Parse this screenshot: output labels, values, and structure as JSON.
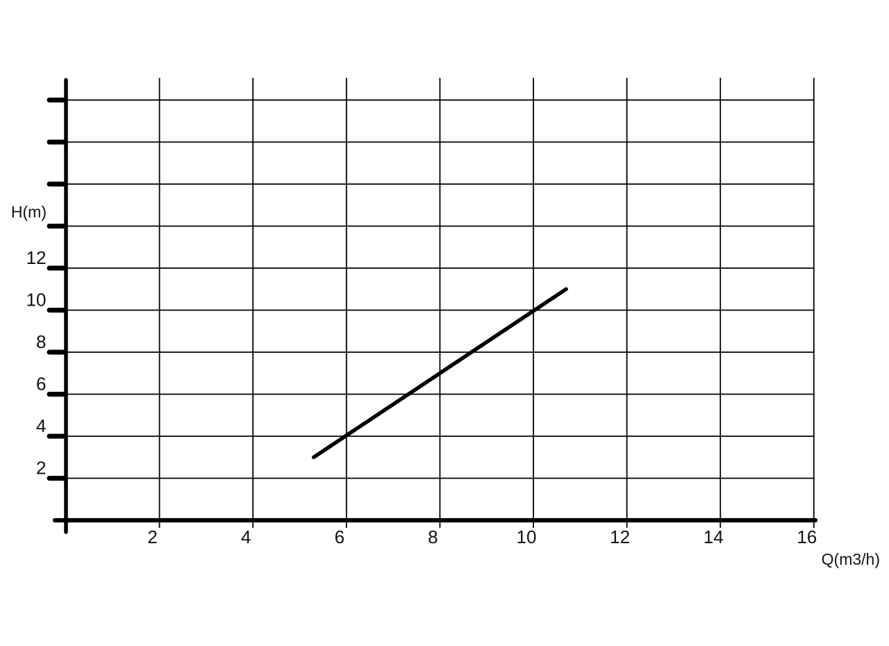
{
  "page": {
    "background_color": "#ffffff"
  },
  "chart_data": {
    "type": "line",
    "title": "",
    "xlabel": "Q(m3/h)",
    "ylabel": "H(m)",
    "xlim": [
      0,
      16.3
    ],
    "ylim": [
      0,
      21
    ],
    "x_tick_values": [
      2,
      4,
      6,
      8,
      10,
      12,
      14,
      16
    ],
    "x_tick_labels": [
      "2",
      "4",
      "6",
      "8",
      "10",
      "12",
      "14",
      "16"
    ],
    "y_tick_values": [
      2,
      4,
      6,
      8,
      10,
      12
    ],
    "y_tick_labels": [
      "2",
      "4",
      "6",
      "8",
      "10",
      "12"
    ],
    "x_gridline_values": [
      2,
      4,
      6,
      8,
      10,
      12,
      14,
      16
    ],
    "y_gridline_values": [
      2,
      4,
      6,
      8,
      10,
      12,
      14,
      16,
      18,
      20
    ],
    "grid": true,
    "legend": false,
    "background_color": "#ffffff",
    "axis_color": "#000000",
    "grid_color": "#000000",
    "line_color": "#000000",
    "series": [
      {
        "points": [
          [
            5.3,
            3
          ],
          [
            10.7,
            11
          ]
        ]
      }
    ]
  }
}
